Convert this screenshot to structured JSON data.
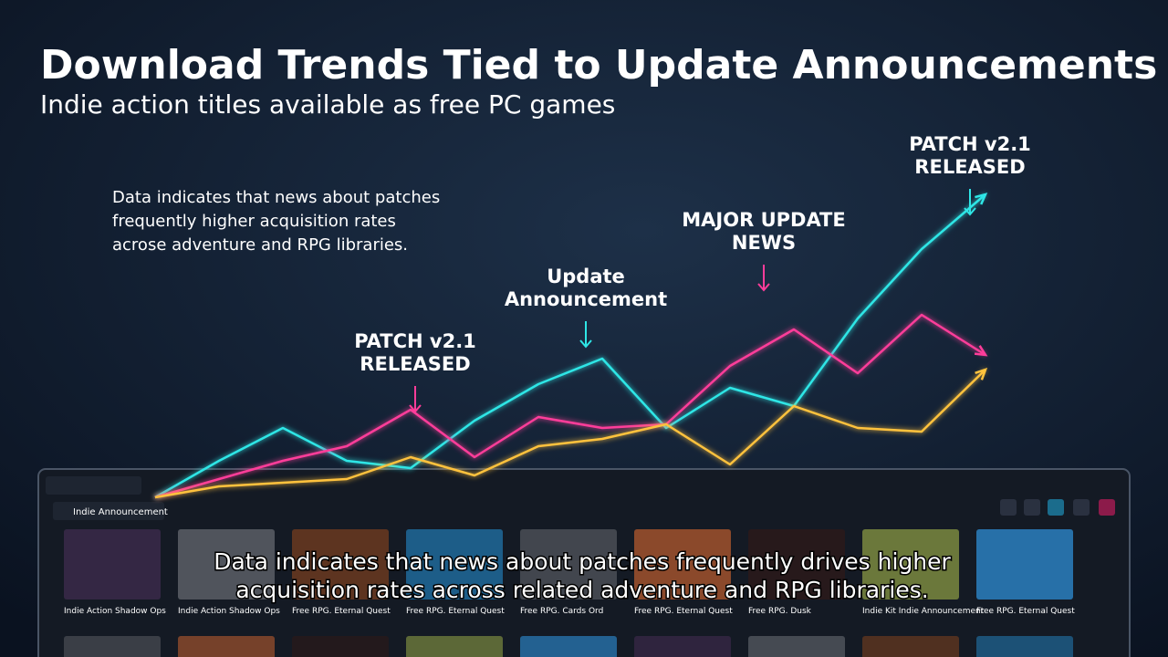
{
  "chart_data": {
    "type": "line",
    "title": "Download Trends Tied to Update Announcements",
    "subtitle": "Indie action titles available as  free PC games",
    "note": [
      "Data indicates that news about patches",
      "frequently higher acquisition rates",
      "acrose adventure and RPG libraries."
    ],
    "annotations": [
      [
        "PATCH v2.1",
        "RELEASED"
      ],
      [
        "Update",
        "Announcement"
      ],
      [
        "MAJOR UPDATE",
        "NEWS"
      ],
      [
        "PATCH v2.1",
        "RELEASED"
      ]
    ],
    "categories": [
      null,
      null,
      null,
      null,
      null,
      null,
      null,
      null,
      null,
      null,
      null,
      null,
      null,
      null
    ],
    "ylim": [
      0,
      100
    ],
    "series": [
      {
        "color": "#2ee6e6",
        "values": [
          0,
          10,
          19,
          10,
          8,
          21,
          31,
          38,
          19,
          30,
          25,
          49,
          68,
          83
        ]
      },
      {
        "color": "#ff3d9a",
        "values": [
          0,
          5,
          10,
          14,
          24,
          11,
          22,
          19,
          20,
          36,
          46,
          34,
          50,
          39
        ]
      },
      {
        "color": "#ffc23d",
        "values": [
          0,
          3,
          4,
          5,
          11,
          6,
          14,
          16,
          20,
          9,
          25,
          19,
          18,
          35
        ]
      }
    ]
  },
  "ui": {
    "tab": "Indie Announcement",
    "tiles": [
      "Indie Action Shadow Ops",
      "Indie Action Shadow Ops",
      "Free RPG. Eternal Quest",
      "Free RPG. Eternal Quest",
      "Free RPG. Cards Ord",
      "Free RPG. Eternal Quest",
      "Free RPG. Dusk",
      "Indie Kit Indie Announcement",
      "Free RPG. Eternal Quest"
    ],
    "caption": [
      "Data indicates that news about patches frequently drives higher",
      "acquisition rates across related adventure and RPG libraries."
    ]
  }
}
